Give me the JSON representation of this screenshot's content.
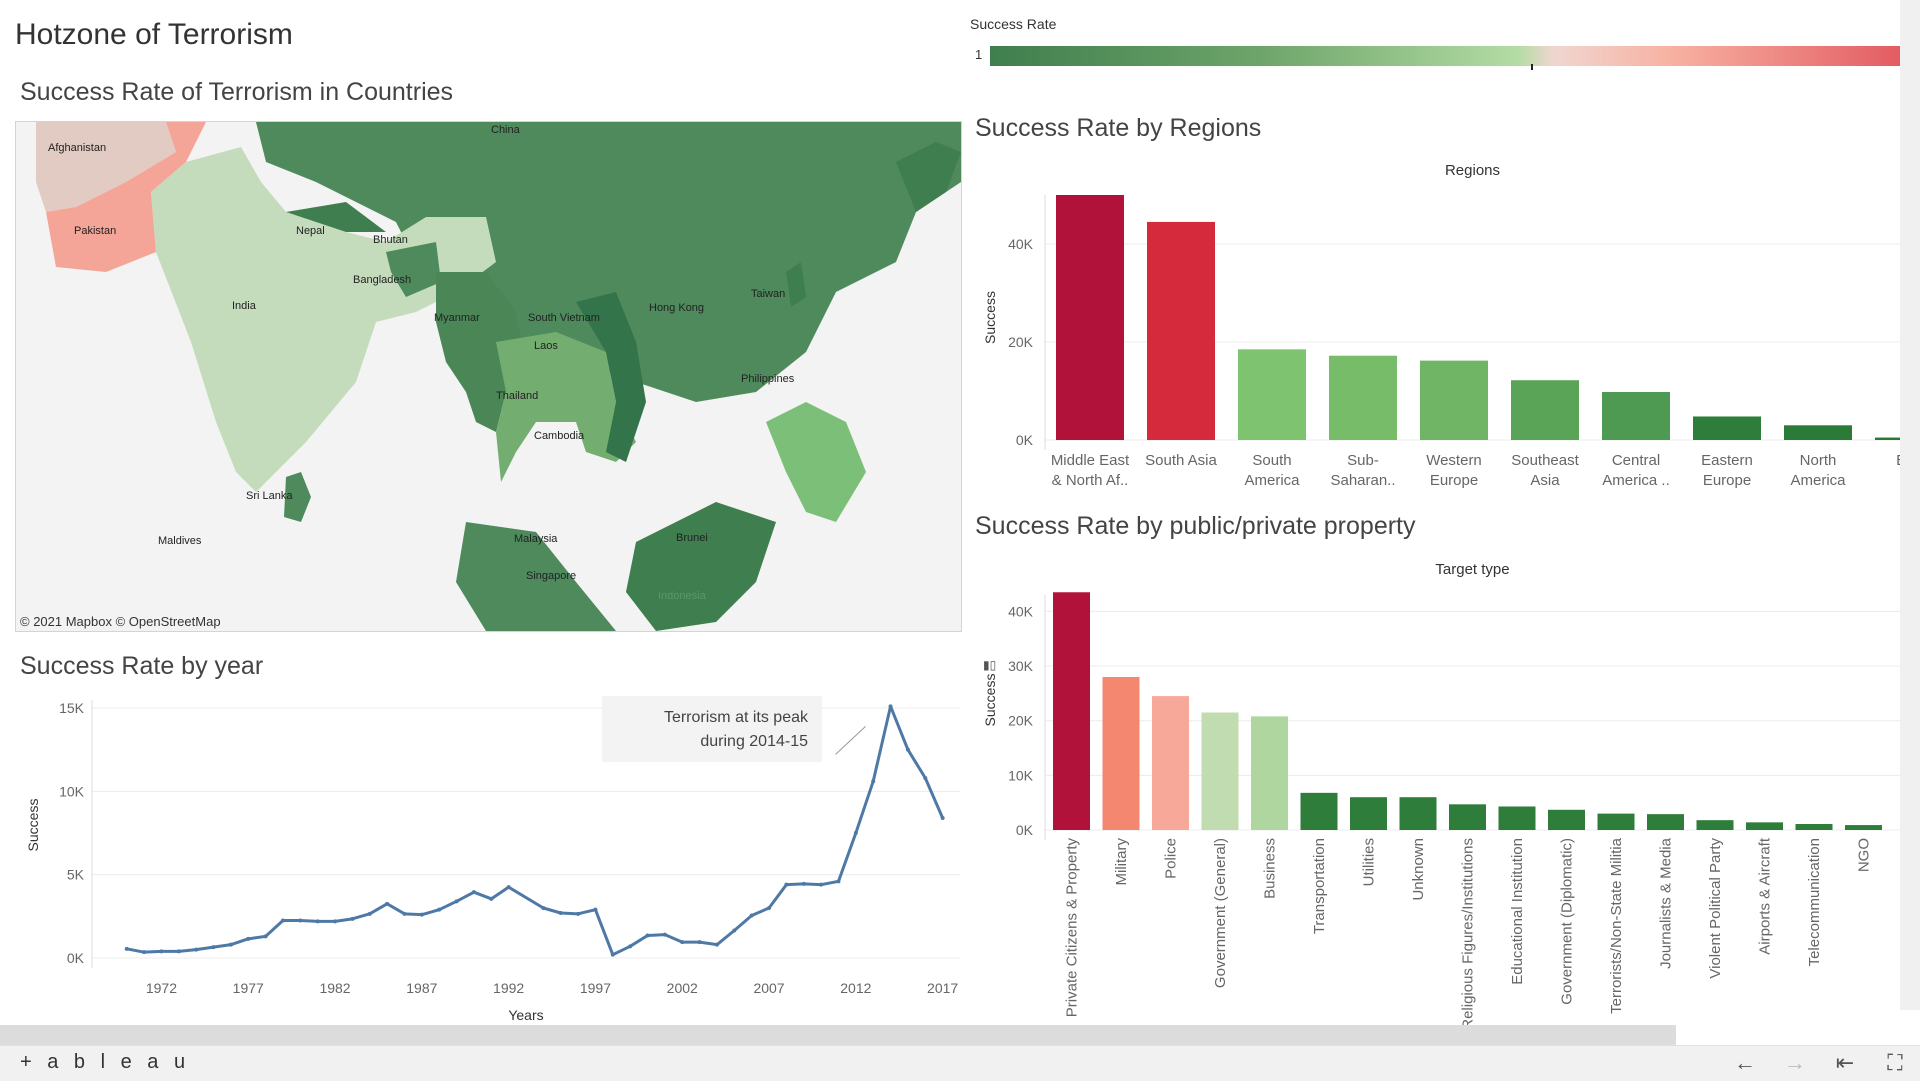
{
  "dashboard": {
    "title": "Hotzone of Terrorism"
  },
  "map": {
    "title": "Success Rate of Terrorism in Countries",
    "attribution": "© 2021 Mapbox © OpenStreetMap",
    "labels": [
      "Afghanistan",
      "China",
      "Pakistan",
      "Nepal",
      "Bhutan",
      "India",
      "Bangladesh",
      "Taiwan",
      "Hong Kong",
      "South Vietnam",
      "Myanmar",
      "Laos",
      "Philippines",
      "Thailand",
      "Cambodia",
      "Sri Lanka",
      "Maldives",
      "Malaysia",
      "Brunei",
      "Singapore",
      "Indonesia"
    ]
  },
  "legend": {
    "title": "Success Rate",
    "value": "1",
    "colors": [
      "#3f7e4e",
      "#6ea56a",
      "#b3dca4",
      "#f7b1a1",
      "#e35c62"
    ]
  },
  "colors": {
    "line": "#4e79a7",
    "grid": "#ececec"
  },
  "regions_chart": {
    "title": "Success Rate by Regions",
    "chart_data": {
      "type": "bar",
      "header": "Regions",
      "ylabel": "Success",
      "ylim": [
        0,
        50000
      ],
      "y_ticks": [
        "40K",
        "20K",
        "0K"
      ],
      "categories": [
        [
          "Middle East",
          "& North Af.."
        ],
        [
          "South Asia"
        ],
        [
          "South",
          "America"
        ],
        [
          "Sub-",
          "Saharan.."
        ],
        [
          "Western",
          "Europe"
        ],
        [
          "Southeast",
          "Asia"
        ],
        [
          "Central",
          "America .."
        ],
        [
          "Eastern",
          "Europe"
        ],
        [
          "North",
          "America"
        ],
        [
          "Eas"
        ]
      ],
      "values": [
        50000,
        44500,
        18500,
        17200,
        16200,
        12200,
        9800,
        4800,
        3000,
        500
      ],
      "colors": [
        "#b0123a",
        "#d42a3c",
        "#7ec470",
        "#76bc69",
        "#6fb565",
        "#5aa458",
        "#4f9a52",
        "#2e7d3a",
        "#2c7a38",
        "#2a7736"
      ]
    }
  },
  "target_chart": {
    "title": "Success Rate by public/private property",
    "chart_data": {
      "type": "bar",
      "header": "Target type",
      "ylabel": "Success",
      "ylim": [
        0,
        43000
      ],
      "y_ticks": [
        "40K",
        "30K",
        "20K",
        "10K",
        "0K"
      ],
      "categories": [
        "Private Citizens & Property",
        "Military",
        "Police",
        "Government (General)",
        "Business",
        "Transportation",
        "Utilities",
        "Unknown",
        "Religious Figures/Institutions",
        "Educational Institution",
        "Government (Diplomatic)",
        "Terrorists/Non-State Militia",
        "Journalists & Media",
        "Violent Political Party",
        "Airports & Aircraft",
        "Telecommunication",
        "NGO"
      ],
      "values": [
        43500,
        28000,
        24500,
        21500,
        20800,
        6800,
        6000,
        6000,
        4700,
        4300,
        3700,
        3000,
        2900,
        1800,
        1400,
        1100,
        900
      ],
      "colors": [
        "#b0123a",
        "#f4876f",
        "#f7a898",
        "#c0dcb0",
        "#b0d6a0",
        "#2e7d3a",
        "#2e7d3a",
        "#2e7d3a",
        "#2e7d3a",
        "#2e7d3a",
        "#2e7d3a",
        "#2e7d3a",
        "#2e7d3a",
        "#2e7d3a",
        "#2e7d3a",
        "#2e7d3a",
        "#2e7d3a"
      ]
    }
  },
  "year_chart": {
    "title": "Success Rate by year",
    "annotation": [
      "Terrorism at its peak",
      "during 2014-15"
    ],
    "chart_data": {
      "type": "line",
      "xlabel": "Years",
      "ylabel": "Success",
      "xlim": [
        1968,
        2018
      ],
      "ylim": [
        0,
        15000
      ],
      "x_ticks": [
        "1972",
        "1977",
        "1982",
        "1987",
        "1992",
        "1997",
        "2002",
        "2007",
        "2012",
        "2017"
      ],
      "y_ticks": [
        "15K",
        "10K",
        "5K",
        "0K"
      ],
      "x": [
        1970,
        1971,
        1972,
        1973,
        1974,
        1975,
        1976,
        1977,
        1978,
        1979,
        1980,
        1981,
        1982,
        1983,
        1984,
        1985,
        1986,
        1987,
        1988,
        1989,
        1990,
        1991,
        1992,
        1994,
        1995,
        1996,
        1997,
        1998,
        1999,
        2000,
        2001,
        2002,
        2003,
        2004,
        2005,
        2006,
        2007,
        2008,
        2009,
        2010,
        2011,
        2012,
        2013,
        2014,
        2015,
        2016,
        2017
      ],
      "y": [
        550,
        350,
        400,
        400,
        500,
        650,
        800,
        1150,
        1300,
        2250,
        2250,
        2200,
        2200,
        2350,
        2650,
        3250,
        2650,
        2600,
        2900,
        3400,
        3950,
        3550,
        4250,
        3000,
        2700,
        2650,
        2900,
        200,
        700,
        1350,
        1400,
        950,
        950,
        800,
        1650,
        2550,
        3000,
        4400,
        4450,
        4400,
        4600,
        7500,
        10600,
        15100,
        12500,
        10800,
        8400
      ]
    }
  },
  "footer": {
    "logo": "+ a b l e a u",
    "nav_icons": [
      "←",
      "→",
      "⇤",
      "⛶"
    ]
  }
}
